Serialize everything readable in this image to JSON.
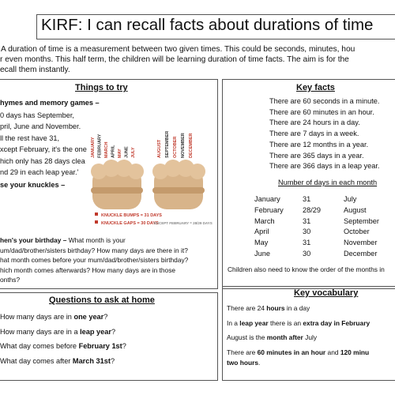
{
  "header": {
    "title": "KIRF: I can recall facts about durations of time",
    "intro": [
      "A duration of time is a measurement between two given times. This could be seconds, minutes, hou",
      "r even months. This half term, the children will be learning duration of time facts. The aim is for the",
      "ecall them instantly."
    ]
  },
  "things_to_try": {
    "title": "Things to try",
    "rhymes_heading": "hymes and memory games –",
    "rhyme": [
      "0 days has September,",
      "pril, June and November.",
      "ll the rest have 31,",
      "xcept February, it's the one",
      "hich only has 28 days clea",
      "nd 29 in each leap year.'"
    ],
    "knuckles_heading": "se your knuckles –",
    "knuckle_months_left": [
      "JANUARY",
      "FEBRUARY",
      "MARCH",
      "APRIL",
      "MAY",
      "JUNE",
      "JULY"
    ],
    "knuckle_months_right": [
      "AUGUST",
      "SEPTEMBER",
      "OCTOBER",
      "NOVEMBER",
      "DECEMBER"
    ],
    "legend": [
      "KNUCKLE BUMPS = 31 DAYS",
      "KNUCKLE GAPS = 30 DAYS"
    ],
    "legend_note": "EXCEPT FEBRUARY = 28/29 DAYS",
    "birthday": [
      [
        "",
        "hen's your birthday –",
        " What month is your"
      ],
      [
        "um/dad/brother/sisters birthday? How many days are there in it?"
      ],
      [
        "hat month comes before your mum/dad/brother/sisters birthday?"
      ],
      [
        "hich month comes afterwards? How many days are in those"
      ],
      [
        "onths?"
      ]
    ]
  },
  "key_facts": {
    "title": "Key facts",
    "facts": [
      "There are 60 seconds in a minute.",
      "There are 60 minutes in an hour.",
      "There are 24 hours in a day.",
      "There are 7 days in a week.",
      "There are 12 months in a year.",
      "There are 365 days in a year.",
      "There are 366 days in a leap year."
    ],
    "table_title": "Number of days in each month",
    "table": [
      [
        "January",
        "31",
        "July"
      ],
      [
        "February",
        "28/29",
        "August"
      ],
      [
        "March",
        "31",
        "September"
      ],
      [
        "April",
        "30",
        "October"
      ],
      [
        "May",
        "31",
        "November"
      ],
      [
        "June",
        "30",
        "December"
      ]
    ],
    "footer": "Children also need to know the order of the months in"
  },
  "questions": {
    "title": "Questions to ask at home",
    "items": [
      [
        "How many days are in ",
        "one year",
        "?"
      ],
      [
        "How many days are in a ",
        "leap year",
        "?"
      ],
      [
        "What day comes before ",
        "February 1st",
        "?"
      ],
      [
        "What day comes after ",
        "March 31st",
        "?"
      ]
    ]
  },
  "vocabulary": {
    "title": "Key vocabulary",
    "items": [
      [
        [
          "There are 24 ",
          "hours",
          " in a day"
        ]
      ],
      [
        [
          "In a ",
          "leap year",
          " there is an ",
          "extra day in February"
        ]
      ],
      [
        [
          "August is the ",
          "month after",
          " July"
        ]
      ],
      [
        [
          "There are ",
          "60 minutes in an hour",
          " and ",
          "120 minu"
        ],
        [
          "",
          "two hours",
          "."
        ]
      ]
    ]
  }
}
